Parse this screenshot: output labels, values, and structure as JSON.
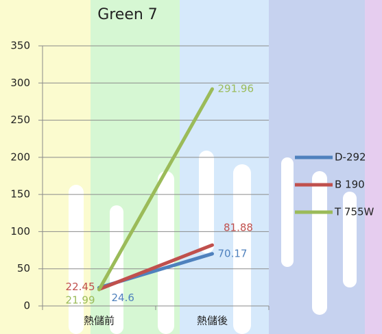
{
  "chart_data": {
    "type": "line",
    "title": "Green 7",
    "categories": [
      "熱儲前",
      "熱儲後"
    ],
    "series": [
      {
        "name": "D-292",
        "color": "#4f81bd",
        "values": [
          24.6,
          70.17
        ]
      },
      {
        "name": "B 190",
        "color": "#c0504d",
        "values": [
          22.45,
          81.88
        ]
      },
      {
        "name": "T 755W",
        "color": "#9bbb59",
        "values": [
          21.99,
          291.96
        ]
      }
    ],
    "ylim": [
      0,
      350
    ],
    "yticks": [
      0,
      50,
      100,
      150,
      200,
      250,
      300,
      350
    ],
    "grid": true,
    "legend": "right"
  }
}
